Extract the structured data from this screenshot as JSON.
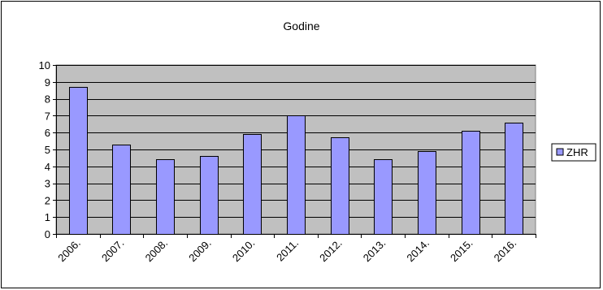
{
  "chart_data": {
    "type": "bar",
    "title": "Godine",
    "xlabel": "",
    "ylabel": "",
    "categories": [
      "2006.",
      "2007.",
      "2008.",
      "2009.",
      "2010.",
      "2011.",
      "2012.",
      "2013.",
      "2014.",
      "2015.",
      "2016."
    ],
    "series": [
      {
        "name": "ZHR",
        "values": [
          8.7,
          5.3,
          4.4,
          4.6,
          5.9,
          7.0,
          5.7,
          4.4,
          4.9,
          6.1,
          6.6
        ]
      }
    ],
    "ylim": [
      0,
      10
    ],
    "yticks": [
      "0",
      "1",
      "2",
      "3",
      "4",
      "5",
      "6",
      "7",
      "8",
      "9",
      "10"
    ],
    "grid": true,
    "legend_position": "right",
    "colors": {
      "plot_background": "#c0c0c0",
      "bar_fill": "#9999ff",
      "bar_stroke": "#000000",
      "gridline": "#000000"
    }
  }
}
